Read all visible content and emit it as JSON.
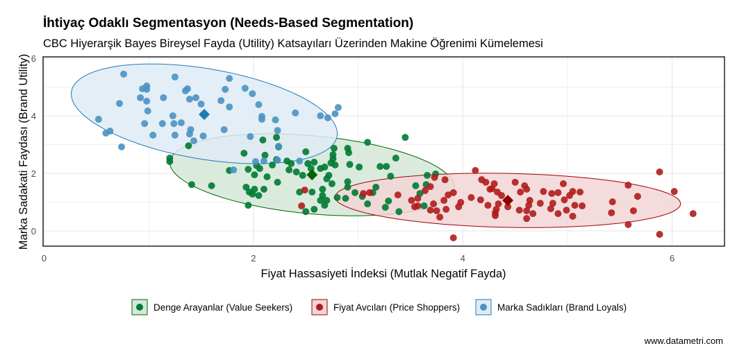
{
  "chart_data": {
    "type": "scatter",
    "title": "İhtiyaç Odaklı Segmentasyon (Needs-Based Segmentation)",
    "subtitle": "CBC Hiyerarşik Bayes Bireysel Fayda (Utility) Katsayıları Üzerinden Makine Öğrenimi Kümelemesi",
    "xlabel": "Fiyat Hassasiyeti İndeksi (Mutlak Negatif Fayda)",
    "ylabel": "Marka Sadakati Faydası (Brand Utility)",
    "xlim": [
      -0.01,
      6.5
    ],
    "ylim": [
      -0.53,
      6.05
    ],
    "xticks": [
      "0",
      "2",
      "4",
      "6"
    ],
    "xtick_values": [
      0,
      2,
      4,
      6
    ],
    "yticks": [
      "0",
      "2",
      "4",
      "6"
    ],
    "ytick_values": [
      0,
      2,
      4,
      6
    ],
    "grid": true,
    "legend_position": "bottom",
    "caption": "www.datametri.com",
    "series": [
      {
        "name": "Denge Arayanlar (Value Seekers)",
        "color": "#007a33",
        "fill": "#d3e8d8",
        "stroke": "#006400",
        "centroid_color": "#006400",
        "centroid": [
          2.56,
          1.95
        ],
        "ellipse": {
          "center": [
            2.56,
            1.95
          ],
          "u": [
            1.35,
            -0.27
          ],
          "v": [
            -0.15,
            1.4
          ]
        },
        "points": [
          [
            1.38,
            2.96
          ],
          [
            1.2,
            2.53
          ],
          [
            1.2,
            2.41
          ],
          [
            2.09,
            3.16
          ],
          [
            2.22,
            3.25
          ],
          [
            2.24,
            2.92
          ],
          [
            2.11,
            2.63
          ],
          [
            1.91,
            2.7
          ],
          [
            1.95,
            2.14
          ],
          [
            1.77,
            2.1
          ],
          [
            2.03,
            2.27
          ],
          [
            2.06,
            2.17
          ],
          [
            2.01,
            1.95
          ],
          [
            2.18,
            2.29
          ],
          [
            2.22,
            2.48
          ],
          [
            2.32,
            2.43
          ],
          [
            2.34,
            2.12
          ],
          [
            2.36,
            2.34
          ],
          [
            2.5,
            2.75
          ],
          [
            2.58,
            2.39
          ],
          [
            2.55,
            2.17
          ],
          [
            2.52,
            2.34
          ],
          [
            2.64,
            2.17
          ],
          [
            2.68,
            2.22
          ],
          [
            2.76,
            2.65
          ],
          [
            2.76,
            2.51
          ],
          [
            2.74,
            2.36
          ],
          [
            2.9,
            2.87
          ],
          [
            2.91,
            2.72
          ],
          [
            2.77,
            2.87
          ],
          [
            2.78,
            2.29
          ],
          [
            2.72,
            1.93
          ],
          [
            2.7,
            1.81
          ],
          [
            2.75,
            1.64
          ],
          [
            2.66,
            1.45
          ],
          [
            2.56,
            1.35
          ],
          [
            2.7,
            1.06
          ],
          [
            2.68,
            0.89
          ],
          [
            3.01,
            2.22
          ],
          [
            3.09,
            3.08
          ],
          [
            3.45,
            3.25
          ],
          [
            3.36,
            2.53
          ],
          [
            3.21,
            2.24
          ],
          [
            3.27,
            2.24
          ],
          [
            3.31,
            1.9
          ],
          [
            2.92,
            2.31
          ],
          [
            2.9,
            1.71
          ],
          [
            2.44,
            1.35
          ],
          [
            2.8,
            1.16
          ],
          [
            2.88,
            1.13
          ],
          [
            3.04,
            1.2
          ],
          [
            3.14,
            1.33
          ],
          [
            2.9,
            1.52
          ],
          [
            2.97,
            1.33
          ],
          [
            3.59,
            1.3
          ],
          [
            3.74,
            1.98
          ],
          [
            3.55,
            1.57
          ],
          [
            3.65,
            1.61
          ],
          [
            3.66,
            1.93
          ],
          [
            3.63,
            0.87
          ],
          [
            3.26,
            0.82
          ],
          [
            3.39,
            0.67
          ],
          [
            2.66,
            1.23
          ],
          [
            2.64,
            1.06
          ],
          [
            1.41,
            1.61
          ],
          [
            1.6,
            1.57
          ],
          [
            1.96,
            1.35
          ],
          [
            1.99,
            1.28
          ],
          [
            2.01,
            1.45
          ],
          [
            2.05,
            1.23
          ],
          [
            1.93,
            1.52
          ],
          [
            1.95,
            0.89
          ],
          [
            2.13,
            1.88
          ],
          [
            2.23,
            1.69
          ],
          [
            2.5,
            0.67
          ],
          [
            2.58,
            0.75
          ],
          [
            2.41,
            2.05
          ],
          [
            2.47,
            1.93
          ],
          [
            2.1,
            1.45
          ],
          [
            3.17,
            1.52
          ],
          [
            3.29,
            1.04
          ],
          [
            3.09,
            0.94
          ]
        ]
      },
      {
        "name": "Fiyat Avcıları (Price Shoppers)",
        "color": "#b01c1c",
        "fill": "#f2d6d7",
        "stroke": "#a00000",
        "centroid_color": "#8b0000",
        "centroid": [
          4.43,
          1.06
        ],
        "ellipse": {
          "center": [
            4.43,
            1.06
          ],
          "u": [
            1.65,
            -0.1
          ],
          "v": [
            -0.03,
            0.94
          ]
        },
        "points": [
          [
            4.12,
            2.1
          ],
          [
            4.18,
            1.78
          ],
          [
            4.22,
            1.69
          ],
          [
            4.3,
            1.64
          ],
          [
            4.28,
            1.47
          ],
          [
            4.26,
            1.45
          ],
          [
            4.33,
            1.35
          ],
          [
            4.37,
            1.23
          ],
          [
            4.5,
            1.69
          ],
          [
            4.59,
            1.57
          ],
          [
            4.61,
            1.45
          ],
          [
            4.55,
            1.35
          ],
          [
            4.77,
            1.37
          ],
          [
            4.85,
            1.3
          ],
          [
            4.91,
            1.33
          ],
          [
            4.96,
            1.64
          ],
          [
            5.05,
            1.37
          ],
          [
            5.12,
            1.35
          ],
          [
            5.02,
            1.23
          ],
          [
            4.97,
            1.08
          ],
          [
            4.86,
            0.96
          ],
          [
            4.84,
            0.77
          ],
          [
            4.91,
            0.6
          ],
          [
            4.99,
            0.72
          ],
          [
            5.05,
            0.51
          ],
          [
            5.07,
            0.89
          ],
          [
            5.14,
            0.87
          ],
          [
            4.74,
            0.96
          ],
          [
            4.67,
            0.6
          ],
          [
            4.61,
            0.43
          ],
          [
            4.61,
            0.7
          ],
          [
            4.63,
            0.89
          ],
          [
            4.64,
            1.06
          ],
          [
            4.54,
            0.72
          ],
          [
            4.43,
            0.84
          ],
          [
            4.34,
            0.94
          ],
          [
            4.32,
            0.75
          ],
          [
            4.31,
            0.63
          ],
          [
            4.31,
            0.53
          ],
          [
            4.24,
            0.89
          ],
          [
            4.17,
            1.08
          ],
          [
            4.08,
            1.16
          ],
          [
            3.98,
            0.99
          ],
          [
            3.96,
            0.84
          ],
          [
            3.91,
            1.33
          ],
          [
            3.86,
            1.25
          ],
          [
            3.82,
            1.06
          ],
          [
            3.83,
            1.78
          ],
          [
            3.73,
            1.86
          ],
          [
            3.69,
            1.54
          ],
          [
            3.64,
            1.4
          ],
          [
            3.72,
            0.94
          ],
          [
            3.69,
            0.72
          ],
          [
            3.75,
            0.7
          ],
          [
            3.78,
            0.48
          ],
          [
            3.84,
            0.75
          ],
          [
            3.91,
            -0.24
          ],
          [
            3.57,
            1.13
          ],
          [
            3.51,
            1.06
          ],
          [
            3.57,
            0.87
          ],
          [
            3.54,
            0.84
          ],
          [
            3.38,
            1.25
          ],
          [
            3.11,
            1.33
          ],
          [
            3.05,
            1.3
          ],
          [
            2.49,
            1.42
          ],
          [
            2.46,
            0.87
          ],
          [
            5.43,
            1.01
          ],
          [
            5.42,
            0.63
          ],
          [
            5.58,
            1.59
          ],
          [
            5.67,
            1.2
          ],
          [
            5.63,
            0.7
          ],
          [
            5.58,
            0.22
          ],
          [
            5.88,
            2.05
          ],
          [
            6.02,
            1.37
          ],
          [
            6.2,
            0.6
          ],
          [
            5.88,
            -0.12
          ]
        ]
      },
      {
        "name": "Marka Sadıkları (Brand Loyals)",
        "color": "#4a92c2",
        "fill": "#dfebf4",
        "stroke": "#1f7ab5",
        "centroid_color": "#1f7ab5",
        "centroid": [
          1.53,
          4.05
        ],
        "ellipse": {
          "center": [
            1.53,
            4.07
          ],
          "u": [
            1.25,
            -0.39
          ],
          "v": [
            -0.23,
            1.69
          ]
        },
        "points": [
          [
            0.76,
            5.45
          ],
          [
            1.25,
            5.35
          ],
          [
            1.77,
            5.3
          ],
          [
            0.98,
            5.04
          ],
          [
            0.94,
            4.94
          ],
          [
            0.98,
            4.92
          ],
          [
            1.73,
            4.92
          ],
          [
            1.37,
            4.94
          ],
          [
            1.35,
            4.87
          ],
          [
            1.92,
            4.96
          ],
          [
            1.99,
            4.77
          ],
          [
            0.92,
            4.63
          ],
          [
            0.98,
            4.51
          ],
          [
            1.14,
            4.63
          ],
          [
            1.39,
            4.58
          ],
          [
            1.45,
            4.63
          ],
          [
            1.69,
            4.53
          ],
          [
            1.5,
            4.41
          ],
          [
            1.77,
            4.31
          ],
          [
            0.72,
            4.43
          ],
          [
            2.05,
            4.39
          ],
          [
            0.99,
            4.17
          ],
          [
            0.52,
            3.88
          ],
          [
            1.23,
            4.0
          ],
          [
            2.08,
            3.98
          ],
          [
            2.08,
            3.88
          ],
          [
            2.21,
            3.86
          ],
          [
            2.78,
            4.07
          ],
          [
            2.64,
            4.0
          ],
          [
            2.71,
            3.93
          ],
          [
            2.81,
            4.29
          ],
          [
            2.4,
            4.1
          ],
          [
            1.13,
            3.73
          ],
          [
            1.24,
            3.73
          ],
          [
            1.31,
            3.76
          ],
          [
            0.96,
            3.73
          ],
          [
            0.59,
            3.4
          ],
          [
            0.63,
            3.47
          ],
          [
            1.04,
            3.33
          ],
          [
            1.25,
            3.33
          ],
          [
            1.39,
            3.37
          ],
          [
            1.4,
            3.52
          ],
          [
            1.52,
            3.3
          ],
          [
            1.72,
            3.52
          ],
          [
            1.97,
            3.28
          ],
          [
            2.23,
            3.49
          ],
          [
            2.24,
            2.94
          ],
          [
            0.74,
            2.92
          ],
          [
            1.43,
            3.13
          ],
          [
            2.02,
            2.41
          ],
          [
            2.1,
            2.43
          ],
          [
            1.81,
            2.12
          ],
          [
            2.44,
            2.43
          ],
          [
            2.23,
            2.46
          ]
        ]
      }
    ]
  }
}
